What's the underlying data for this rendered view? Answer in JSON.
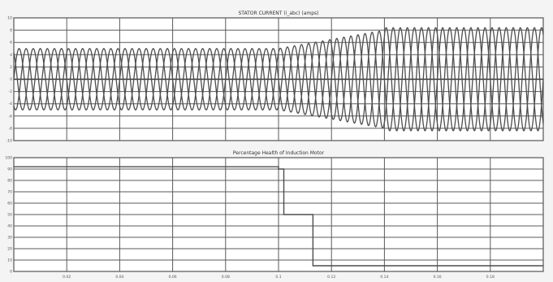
{
  "chart_data": [
    {
      "type": "line",
      "title": "STATOR CURRENT (i_abc) (amps)",
      "xlabel": "",
      "ylabel": "",
      "xlim": [
        0.0,
        0.2
      ],
      "ylim": [
        -10,
        10
      ],
      "xticks": [
        "0.02",
        "0.04",
        "0.06",
        "0.08",
        "0.1",
        "0.12",
        "0.14",
        "0.16",
        "0.18"
      ],
      "yticks": [
        "-10",
        "-8",
        "-6",
        "-4",
        "-2",
        "0",
        "2",
        "4",
        "6",
        "8",
        "10"
      ],
      "grid": true,
      "line_color": "#4d4d4d",
      "frequency_hz": 125,
      "series": [
        {
          "phase_deg": 0
        },
        {
          "phase_deg": -120
        },
        {
          "phase_deg": 120
        }
      ],
      "amplitude_segments": [
        {
          "t_start": 0.0,
          "t_end": 0.1,
          "amplitude": 5.0
        },
        {
          "t_start": 0.1,
          "t_end": 0.14,
          "amplitude_start": 5.0,
          "amplitude_end": 8.0
        },
        {
          "t_start": 0.14,
          "t_end": 0.2,
          "amplitude": 8.4
        }
      ]
    },
    {
      "type": "line",
      "title": "Percentage Health of Induction Motor",
      "xlabel": "",
      "ylabel": "",
      "xlim": [
        0.0,
        0.2
      ],
      "ylim": [
        0,
        100
      ],
      "xticks": [
        "0.02",
        "0.04",
        "0.06",
        "0.08",
        "0.1",
        "0.12",
        "0.14",
        "0.16",
        "0.18"
      ],
      "yticks": [
        "0",
        "10",
        "20",
        "30",
        "40",
        "50",
        "60",
        "70",
        "80",
        "90",
        "100"
      ],
      "grid": true,
      "line_color": "#4d4d4d",
      "series": [
        {
          "x": [
            0.0,
            0.1,
            0.1,
            0.102,
            0.102,
            0.111,
            0.111,
            0.113,
            0.113,
            0.2
          ],
          "y": [
            92,
            92,
            90,
            90,
            50,
            50,
            50,
            50,
            5,
            5
          ]
        }
      ]
    }
  ]
}
